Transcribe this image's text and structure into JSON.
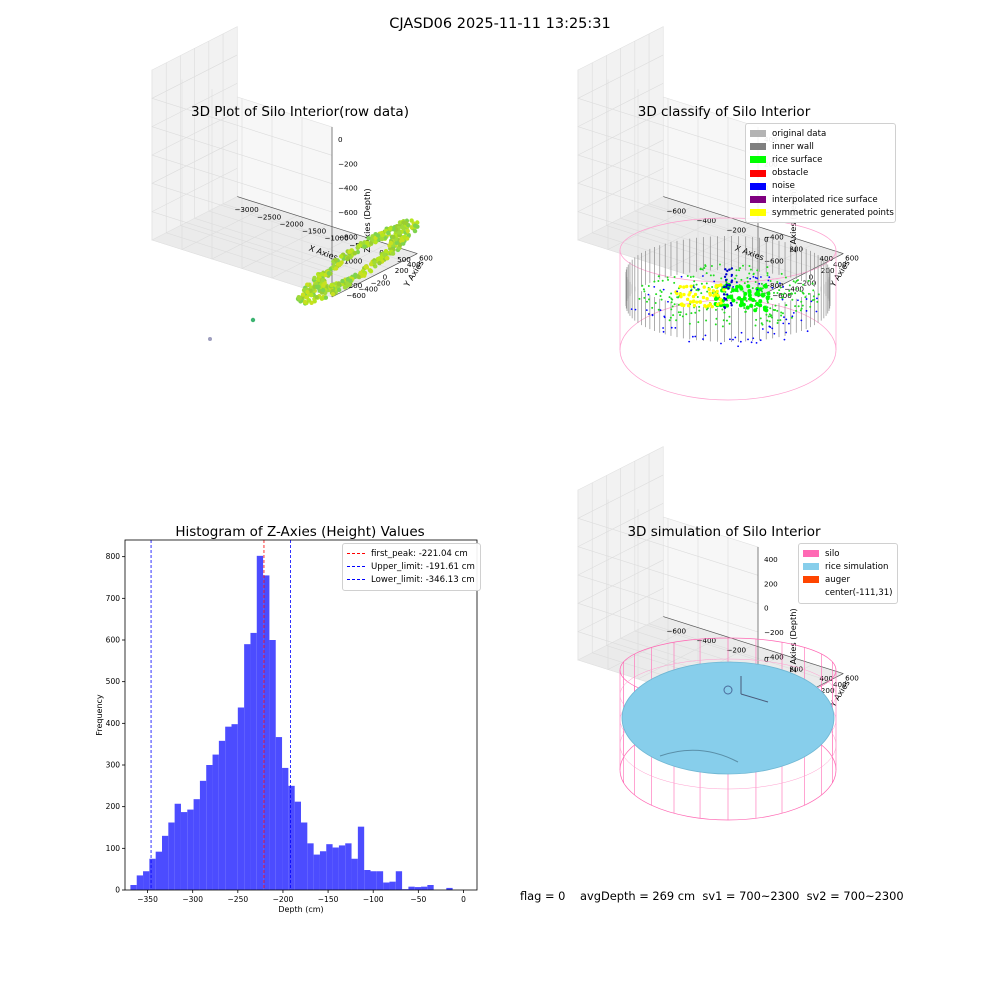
{
  "suptitle": "CJASD06 2025-11-11 13:25:31",
  "panels": {
    "raw": {
      "title": "3D Plot of Silo Interior(row data)",
      "xlabel": "X Axies",
      "ylabel": "Y Axies",
      "zlabel": "Z Axies (Depth)",
      "xticks": [
        "−3000",
        "−2500",
        "−2000",
        "−1500",
        "−1000",
        "−500",
        "0",
        "500"
      ],
      "yticks": [
        "600",
        "400",
        "200",
        "0",
        "−200",
        "−400",
        "−600"
      ],
      "zticks": [
        "0",
        "−200",
        "−400",
        "−600",
        "−800",
        "−1000",
        "−1200"
      ]
    },
    "classify": {
      "title": "3D classify of Silo Interior",
      "xlabel": "X Axies",
      "ylabel": "Y Axies",
      "zlabel": "Z Axies (Depth)",
      "xticks": [
        "−600",
        "−400",
        "−200",
        "0",
        "200",
        "400"
      ],
      "yticks": [
        "600",
        "400",
        "200",
        "0",
        "−200",
        "−400",
        "−600"
      ],
      "zticks": [
        "400",
        "200",
        "0",
        "−200",
        "−400",
        "−600",
        "−800"
      ],
      "legend": [
        {
          "label": "original data",
          "color": "#b3b3b3"
        },
        {
          "label": "inner wall",
          "color": "#808080"
        },
        {
          "label": "rice surface",
          "color": "#00ff00"
        },
        {
          "label": "obstacle",
          "color": "#ff0000"
        },
        {
          "label": "noise",
          "color": "#0000ff"
        },
        {
          "label": "interpolated rice surface",
          "color": "#800080"
        },
        {
          "label": "symmetric generated points",
          "color": "#ffff00"
        }
      ]
    },
    "sim": {
      "title": "3D simulation of Silo Interior",
      "xlabel": "X Axies",
      "ylabel": "Y Axies",
      "zlabel": "Z Axies (Depth)",
      "xticks": [
        "−600",
        "−400",
        "−200",
        "0",
        "200",
        "400"
      ],
      "yticks": [
        "600",
        "400",
        "200",
        "0",
        "−200",
        "−400",
        "−600"
      ],
      "zticks": [
        "400",
        "200",
        "0",
        "−200",
        "−400",
        "−600",
        "−800"
      ],
      "legend": [
        {
          "label": "silo",
          "color": "#ff69b4"
        },
        {
          "label": "rice simulation",
          "color": "#87ceeb"
        },
        {
          "label": "auger",
          "color": "#ff4500"
        },
        {
          "label": "center(-111,31)",
          "color": ""
        }
      ]
    }
  },
  "footer": {
    "flag": "flag = 0",
    "stats": "avgDepth = 269 cm  sv1 = 700~2300  sv2 = 700~2300"
  },
  "chart_data": [
    {
      "type": "bar",
      "title": "Histogram of Z-Axies (Height) Values",
      "xlabel": "Depth (cm)",
      "ylabel": "Frequency",
      "xlim": [
        -375,
        15
      ],
      "ylim": [
        0,
        840
      ],
      "xticks": [
        -350,
        -300,
        -250,
        -200,
        -150,
        -100,
        -50,
        0
      ],
      "yticks": [
        0,
        100,
        200,
        300,
        400,
        500,
        600,
        700,
        800
      ],
      "bar_color": "#4c4cff",
      "bin_width": 7,
      "bin_starts": [
        -369,
        -362,
        -355,
        -348,
        -341,
        -334,
        -327,
        -320,
        -313,
        -306,
        -299,
        -292,
        -285,
        -278,
        -271,
        -264,
        -257,
        -250,
        -243,
        -236,
        -229,
        -222,
        -215,
        -208,
        -201,
        -194,
        -187,
        -180,
        -173,
        -166,
        -159,
        -152,
        -145,
        -138,
        -131,
        -124,
        -117,
        -110,
        -103,
        -96,
        -89,
        -82,
        -75,
        -68,
        -61,
        -54,
        -47,
        -40,
        -33,
        -26,
        -19,
        -12,
        -5
      ],
      "values": [
        12,
        35,
        45,
        75,
        92,
        130,
        162,
        207,
        187,
        193,
        218,
        262,
        300,
        325,
        358,
        392,
        398,
        438,
        590,
        617,
        802,
        755,
        600,
        367,
        293,
        250,
        212,
        162,
        112,
        85,
        93,
        110,
        102,
        107,
        112,
        75,
        152,
        48,
        45,
        45,
        18,
        20,
        45,
        2,
        8,
        7,
        8,
        12,
        0,
        0,
        5,
        0,
        0
      ],
      "annotations": [
        {
          "label": "first_peak: -221.04 cm",
          "x": -221.04,
          "color": "red"
        },
        {
          "label": "Upper_limit: -191.61 cm",
          "x": -191.61,
          "color": "blue"
        },
        {
          "label": "Lower_limit: -346.13 cm",
          "x": -346.13,
          "color": "blue"
        }
      ]
    }
  ]
}
